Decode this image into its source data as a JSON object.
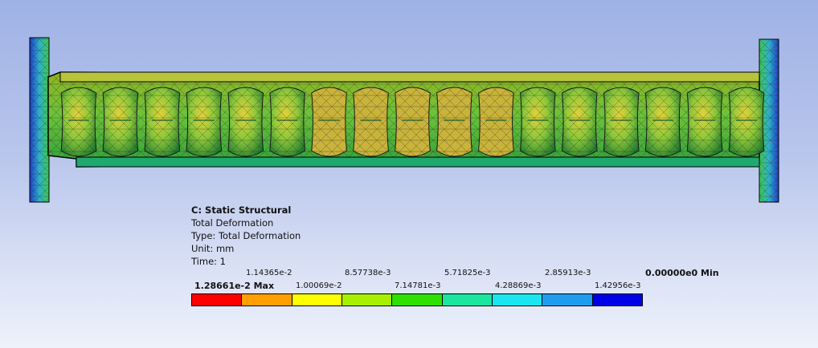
{
  "legend": {
    "title": "C: Static Structural",
    "result": "Total Deformation",
    "type_line": "Type: Total Deformation",
    "unit_line": "Unit: mm",
    "time_line": "Time: 1",
    "top_ticks": [
      "1.14365e-2",
      "8.57738e-3",
      "5.71825e-3",
      "2.85913e-3",
      "0.00000e0 Min"
    ],
    "bottom_ticks": [
      "1.28661e-2 Max",
      "1.00069e-2",
      "7.14781e-3",
      "4.28869e-3",
      "1.42956e-3"
    ],
    "colors": [
      "#ff0000",
      "#ff9f00",
      "#ffff00",
      "#a6f000",
      "#2fe000",
      "#1ae6a0",
      "#1ae6f0",
      "#1f9cf0",
      "#0000e6"
    ]
  },
  "model": {
    "bellows_count": 17,
    "colors": {
      "flange": "#2f6fd6",
      "tube": "#5fc83a",
      "tube_warm": "#b8d21c",
      "hot": "#c8641e",
      "mesh": "#1a1a1a"
    }
  }
}
